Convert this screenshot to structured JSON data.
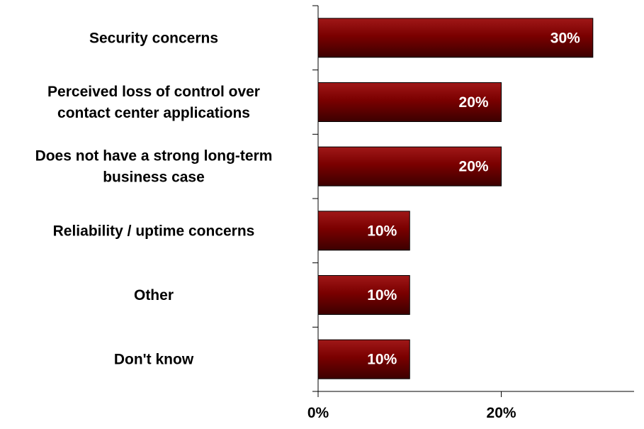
{
  "chart_data": {
    "type": "bar",
    "orientation": "horizontal",
    "categories": [
      "Security concerns",
      "Perceived loss of control over contact center applications",
      "Does not have a strong long-term business case",
      "Reliability / uptime concerns",
      "Other",
      "Don't know"
    ],
    "category_label_lines": [
      [
        "Security concerns"
      ],
      [
        "Perceived loss of control over",
        "contact center applications"
      ],
      [
        "Does not have a strong long-term",
        "business case"
      ],
      [
        "Reliability / uptime concerns"
      ],
      [
        "Other"
      ],
      [
        "Don't know"
      ]
    ],
    "values": [
      30,
      20,
      20,
      10,
      10,
      10
    ],
    "data_labels": [
      "30%",
      "20%",
      "20%",
      "10%",
      "10%",
      "10%"
    ],
    "x_ticks": [
      0,
      20
    ],
    "x_tick_labels": [
      "0%",
      "20%"
    ],
    "xlim": [
      0,
      34.5
    ],
    "title": "",
    "xlabel": "",
    "ylabel": "",
    "grid": false,
    "bar_color": "#7a0000",
    "bar_highlight_color": "#a01818",
    "bar_shadow_color": "#3c0000"
  }
}
